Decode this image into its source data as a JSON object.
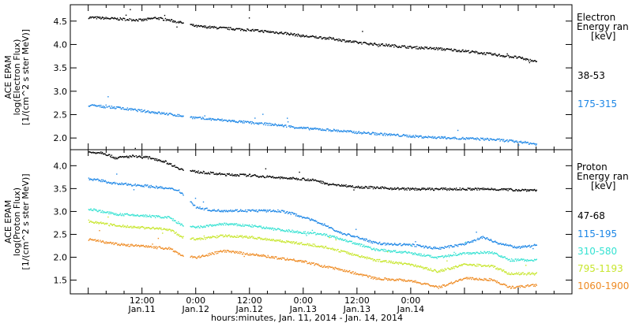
{
  "chart_data": [
    {
      "type": "scatter",
      "panel": "electron",
      "ylabel": [
        "ACE EPAM",
        "log(Electron Flux)",
        "[1/(cm^2 s ster MeV)]"
      ],
      "ylim": [
        1.75,
        4.85
      ],
      "yticks": [
        "2.0",
        "2.5",
        "3.0",
        "3.5",
        "4.0",
        "4.5"
      ],
      "legend_title": [
        "Electron",
        "Energy ran",
        "[keV]"
      ],
      "series": [
        {
          "name": "38-53",
          "color": "#000000",
          "t": [
            0,
            6,
            12,
            15,
            18,
            22,
            24,
            30,
            36,
            44,
            48,
            54,
            60,
            66,
            72,
            78,
            84,
            90,
            96,
            100
          ],
          "y": [
            4.59,
            4.56,
            4.53,
            4.58,
            4.53,
            4.45,
            4.4,
            4.36,
            4.32,
            4.25,
            4.19,
            4.14,
            4.05,
            4.0,
            3.95,
            3.92,
            3.87,
            3.8,
            3.73,
            3.64
          ]
        },
        {
          "name": "175-315",
          "color": "#1c86e6",
          "t": [
            0,
            6,
            12,
            18,
            24,
            30,
            36,
            42,
            48,
            54,
            60,
            66,
            72,
            78,
            84,
            90,
            96,
            100
          ],
          "y": [
            2.71,
            2.66,
            2.59,
            2.52,
            2.44,
            2.39,
            2.34,
            2.29,
            2.22,
            2.18,
            2.13,
            2.09,
            2.05,
            2.02,
            2.0,
            1.98,
            1.93,
            1.88
          ]
        }
      ]
    },
    {
      "type": "scatter",
      "panel": "proton",
      "ylabel": [
        "ACE EPAM",
        "log(Proton Flux)",
        "[1/(cm^2 s ster MeV)]"
      ],
      "ylim": [
        1.2,
        4.35
      ],
      "yticks": [
        "1.5",
        "2.0",
        "2.5",
        "3.0",
        "3.5",
        "4.0"
      ],
      "legend_title": [
        "Proton",
        "Energy ran",
        "[keV]"
      ],
      "series": [
        {
          "name": "47-68",
          "color": "#000000",
          "t": [
            0,
            3,
            6,
            10,
            14,
            17,
            21,
            24,
            30,
            36,
            42,
            48,
            51,
            54,
            60,
            66,
            72,
            78,
            84,
            90,
            96,
            100
          ],
          "y": [
            4.3,
            4.3,
            4.18,
            4.22,
            4.18,
            4.1,
            3.92,
            3.88,
            3.82,
            3.8,
            3.75,
            3.72,
            3.68,
            3.6,
            3.55,
            3.52,
            3.5,
            3.5,
            3.5,
            3.5,
            3.48,
            3.48
          ]
        },
        {
          "name": "115-195",
          "color": "#1c86e6",
          "t": [
            0,
            3,
            6,
            12,
            17,
            20,
            22,
            24,
            28,
            36,
            43,
            46,
            49,
            52,
            56,
            60,
            63,
            66,
            72,
            78,
            84,
            88,
            92,
            96,
            100
          ],
          "y": [
            3.72,
            3.68,
            3.62,
            3.58,
            3.52,
            3.48,
            3.3,
            3.1,
            3.03,
            3.03,
            3.02,
            2.95,
            2.85,
            2.75,
            2.55,
            2.45,
            2.35,
            2.3,
            2.28,
            2.2,
            2.3,
            2.45,
            2.3,
            2.22,
            2.28
          ]
        },
        {
          "name": "310-580",
          "color": "#35e2d2",
          "t": [
            0,
            6,
            12,
            18,
            21,
            24,
            30,
            36,
            42,
            48,
            52,
            56,
            60,
            64,
            72,
            78,
            84,
            90,
            94,
            100
          ],
          "y": [
            3.07,
            2.95,
            2.92,
            2.88,
            2.7,
            2.66,
            2.74,
            2.7,
            2.62,
            2.55,
            2.52,
            2.42,
            2.3,
            2.18,
            2.1,
            2.0,
            2.1,
            2.12,
            1.95,
            1.95
          ]
        },
        {
          "name": "795-1193",
          "color": "#c7e62c",
          "t": [
            0,
            6,
            12,
            18,
            21,
            24,
            30,
            36,
            42,
            48,
            52,
            56,
            60,
            64,
            72,
            78,
            84,
            90,
            94,
            100
          ],
          "y": [
            2.8,
            2.7,
            2.66,
            2.62,
            2.45,
            2.4,
            2.48,
            2.45,
            2.38,
            2.3,
            2.25,
            2.15,
            2.05,
            1.95,
            1.85,
            1.7,
            1.85,
            1.82,
            1.65,
            1.65
          ]
        },
        {
          "name": "1060-1900",
          "color": "#ee8a22",
          "t": [
            0,
            6,
            12,
            18,
            21,
            24,
            30,
            36,
            42,
            48,
            52,
            56,
            60,
            64,
            72,
            78,
            84,
            90,
            94,
            100
          ],
          "y": [
            2.4,
            2.3,
            2.25,
            2.2,
            2.05,
            2.0,
            2.15,
            2.08,
            2.0,
            1.92,
            1.82,
            1.75,
            1.65,
            1.55,
            1.5,
            1.35,
            1.55,
            1.52,
            1.35,
            1.4
          ]
        }
      ]
    }
  ],
  "xaxis": {
    "ticks": [
      {
        "time": "12:00",
        "date": "Jan.11",
        "t": 12
      },
      {
        "time": "0:00",
        "date": "Jan.12",
        "t": 24
      },
      {
        "time": "12:00",
        "date": "Jan.12",
        "t": 36
      },
      {
        "time": "0:00",
        "date": "Jan.13",
        "t": 48
      },
      {
        "time": "12:00",
        "date": "Jan.13",
        "t": 60
      },
      {
        "time": "0:00",
        "date": "Jan.14",
        "t": 72
      }
    ],
    "label": "hours:minutes, Jan. 11, 2014 - Jan. 14, 2014"
  }
}
